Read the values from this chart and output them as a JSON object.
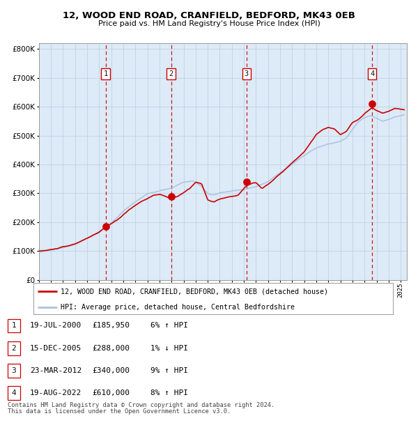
{
  "title": "12, WOOD END ROAD, CRANFIELD, BEDFORD, MK43 0EB",
  "subtitle": "Price paid vs. HM Land Registry's House Price Index (HPI)",
  "transactions": [
    {
      "num": 1,
      "date": "19-JUL-2000",
      "price": 185950,
      "year": 2000.54,
      "pct": "6%",
      "dir": "↑"
    },
    {
      "num": 2,
      "date": "15-DEC-2005",
      "price": 288000,
      "year": 2005.96,
      "pct": "1%",
      "dir": "↓"
    },
    {
      "num": 3,
      "date": "23-MAR-2012",
      "price": 340000,
      "year": 2012.22,
      "pct": "9%",
      "dir": "↑"
    },
    {
      "num": 4,
      "date": "19-AUG-2022",
      "price": 610000,
      "year": 2022.63,
      "pct": "8%",
      "dir": "↑"
    }
  ],
  "legend_line1": "12, WOOD END ROAD, CRANFIELD, BEDFORD, MK43 0EB (detached house)",
  "legend_line2": "HPI: Average price, detached house, Central Bedfordshire",
  "footnote1": "Contains HM Land Registry data © Crown copyright and database right 2024.",
  "footnote2": "This data is licensed under the Open Government Licence v3.0.",
  "hpi_color": "#aac4e0",
  "price_color": "#cc0000",
  "dashed_color": "#cc0000",
  "background_color": "#ddeaf7",
  "ylim": [
    0,
    820000
  ],
  "xmin": 1995.0,
  "xmax": 2025.5,
  "yticks": [
    0,
    100000,
    200000,
    300000,
    400000,
    500000,
    600000,
    700000,
    800000
  ]
}
